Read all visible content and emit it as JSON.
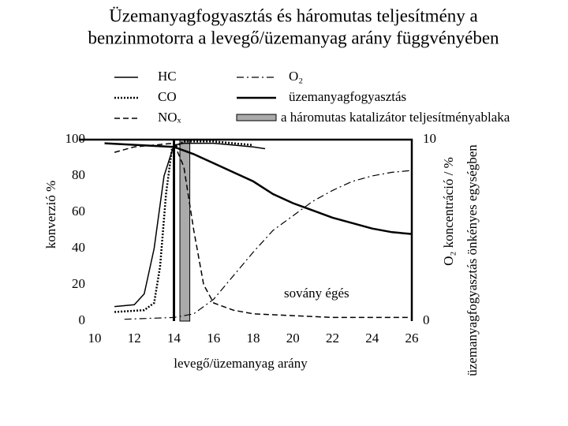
{
  "chart_data": {
    "type": "line",
    "title": [
      "Üzemanyagfogyasztás és háromutas teljesítmény a",
      "benzinmotorra a levegő/üzemanyag arány függvényében"
    ],
    "xlabel": "levegő/üzemanyag arány",
    "ylabel": "konverzió %",
    "y2label": [
      "O₂ koncentráció / %",
      "üzemanyagfogyasztás önkényes egységben"
    ],
    "annotation": "sovány égés",
    "xlim": [
      10,
      26
    ],
    "xticks": [
      10,
      12,
      14,
      16,
      18,
      20,
      22,
      24,
      26
    ],
    "ylim": [
      0,
      100
    ],
    "yticks": [
      0,
      20,
      40,
      60,
      80,
      100
    ],
    "y2lim": [
      0,
      10
    ],
    "y2ticks": [
      0,
      10
    ],
    "reference_x": 14,
    "window": {
      "name": "a háromutas katalizátor teljesítményablaka",
      "range": [
        14.3,
        14.8
      ],
      "color": "#aaaaaa"
    },
    "series": [
      {
        "name": "HC",
        "color": "#000000",
        "dash": "solid",
        "width": 1.5,
        "x": [
          11,
          12,
          12.5,
          13,
          13.5,
          14,
          14.5,
          15,
          16,
          17,
          18,
          18.6
        ],
        "values": [
          8,
          9,
          15,
          40,
          80,
          97,
          98,
          98,
          98,
          97,
          96,
          95
        ]
      },
      {
        "name": "CO",
        "color": "#000000",
        "dash": "dotted",
        "width": 2.5,
        "x": [
          11,
          12.5,
          13,
          13.3,
          13.6,
          13.9,
          14.5,
          16,
          18
        ],
        "values": [
          5,
          6,
          10,
          30,
          70,
          95,
          99,
          99,
          97
        ]
      },
      {
        "name": "NOₓ",
        "color": "#000000",
        "dash": "dashed",
        "width": 1.5,
        "x": [
          11,
          12,
          13,
          14,
          14.5,
          15,
          15.5,
          16,
          17,
          18,
          20,
          22,
          24,
          26
        ],
        "values": [
          93,
          96,
          97,
          98,
          85,
          50,
          20,
          10,
          6,
          4,
          3,
          2,
          2,
          2
        ]
      },
      {
        "name": "O₂",
        "color": "#000000",
        "dash": "dashdot",
        "width": 1.2,
        "axis": "y2",
        "x": [
          11.5,
          14,
          15,
          16,
          17,
          18,
          19,
          20,
          21,
          22,
          23,
          24,
          25,
          26
        ],
        "values": [
          0.1,
          0.2,
          0.4,
          1.2,
          2.5,
          3.8,
          5,
          5.8,
          6.6,
          7.2,
          7.7,
          8,
          8.2,
          8.3
        ]
      },
      {
        "name": "üzemanyagfogyasztás",
        "color": "#000000",
        "dash": "solid",
        "width": 2.5,
        "axis": "y2",
        "x": [
          10.5,
          14,
          15,
          16,
          17,
          18,
          19,
          20,
          21,
          22,
          23,
          24,
          25,
          26
        ],
        "values": [
          9.8,
          9.6,
          9.2,
          8.7,
          8.2,
          7.7,
          7,
          6.5,
          6.1,
          5.7,
          5.4,
          5.1,
          4.9,
          4.8
        ]
      }
    ]
  }
}
